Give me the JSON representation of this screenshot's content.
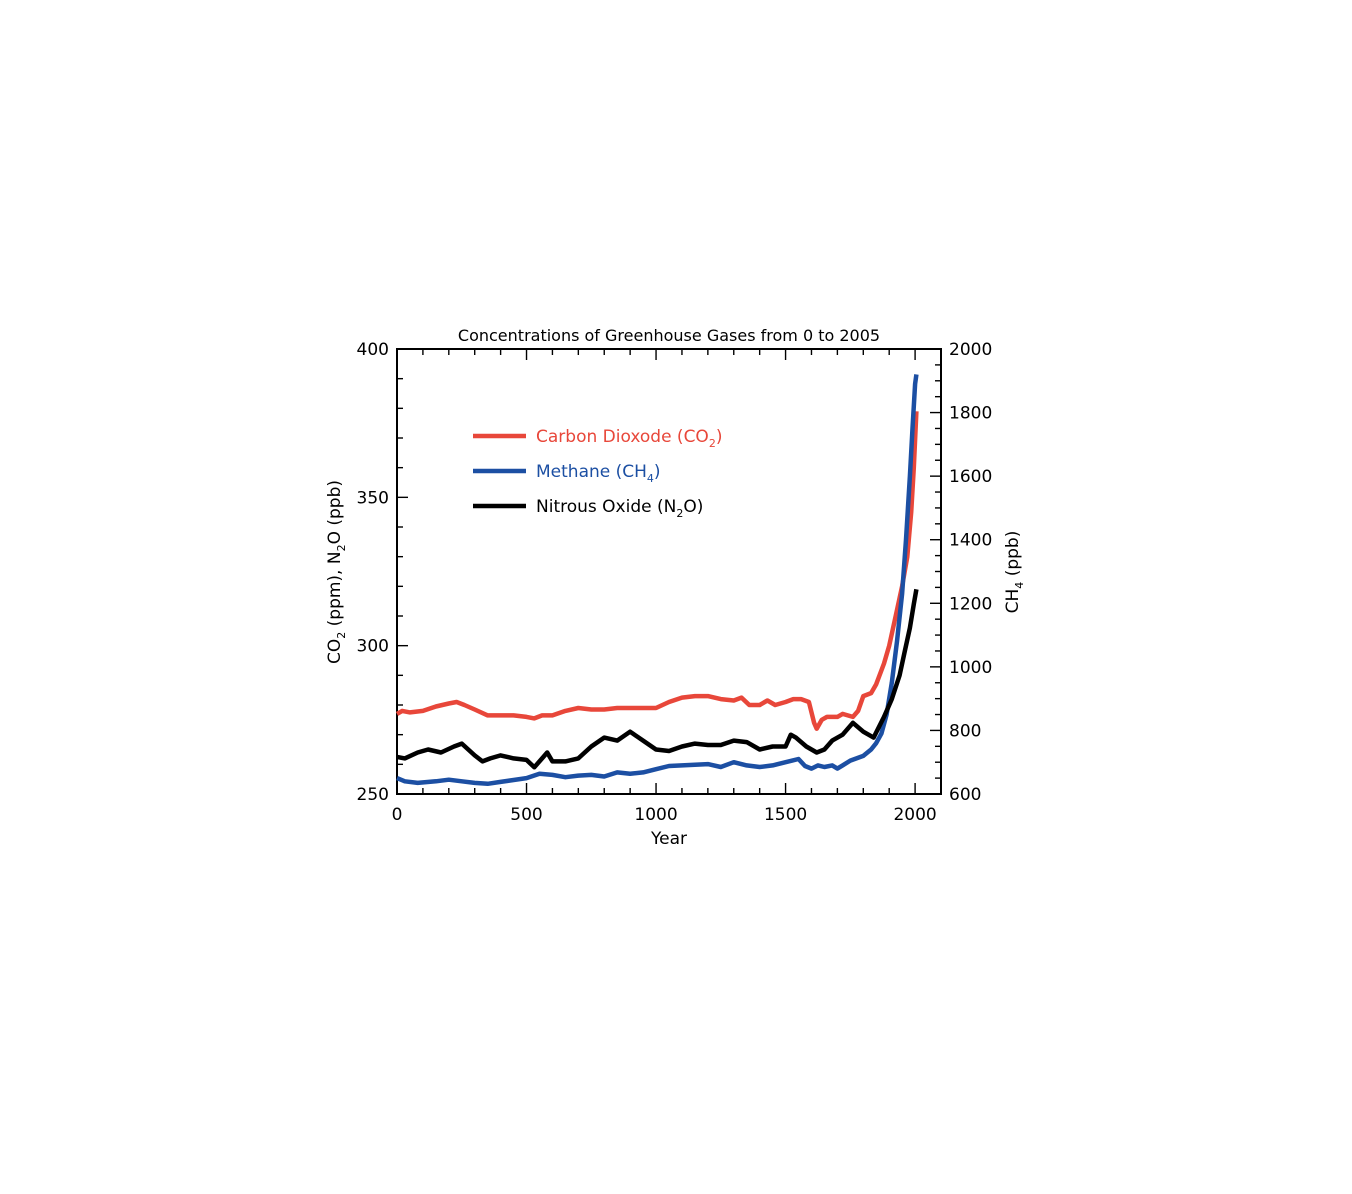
{
  "chart_data": {
    "type": "line",
    "title": "Concentrations of Greenhouse Gases from 0 to 2005",
    "xlabel": "Year",
    "ylabel_left_parts": [
      "CO",
      "2",
      " (ppm), N",
      "2",
      "O (ppb)"
    ],
    "ylabel_right_parts": [
      "CH",
      "4",
      " (ppb)"
    ],
    "xlim": [
      0,
      2100
    ],
    "ylim_left": [
      250,
      400
    ],
    "ylim_right": [
      600,
      2000
    ],
    "x_ticks": [
      0,
      500,
      1000,
      1500,
      2000
    ],
    "y_left_ticks": [
      250,
      300,
      350,
      400
    ],
    "y_right_ticks": [
      600,
      800,
      1000,
      1200,
      1400,
      1600,
      1800,
      2000
    ],
    "grid": false,
    "legend_position": "upper-left",
    "series": [
      {
        "key": "co2",
        "legend": [
          "Carbon Dioxode (CO",
          "2",
          ")"
        ],
        "axis": "left",
        "color": "#e8473a",
        "points": [
          [
            0,
            277
          ],
          [
            20,
            278
          ],
          [
            50,
            277.5
          ],
          [
            100,
            278
          ],
          [
            150,
            279.5
          ],
          [
            200,
            280.5
          ],
          [
            230,
            281
          ],
          [
            260,
            280
          ],
          [
            300,
            278.5
          ],
          [
            350,
            276.5
          ],
          [
            400,
            276.5
          ],
          [
            450,
            276.5
          ],
          [
            500,
            276
          ],
          [
            530,
            275.5
          ],
          [
            560,
            276.5
          ],
          [
            600,
            276.5
          ],
          [
            650,
            278
          ],
          [
            700,
            279
          ],
          [
            750,
            278.5
          ],
          [
            800,
            278.5
          ],
          [
            850,
            279
          ],
          [
            900,
            279
          ],
          [
            950,
            279
          ],
          [
            1000,
            279
          ],
          [
            1050,
            281
          ],
          [
            1100,
            282.5
          ],
          [
            1150,
            283
          ],
          [
            1200,
            283
          ],
          [
            1250,
            282
          ],
          [
            1300,
            281.5
          ],
          [
            1330,
            282.5
          ],
          [
            1360,
            280
          ],
          [
            1400,
            280
          ],
          [
            1430,
            281.5
          ],
          [
            1460,
            280
          ],
          [
            1500,
            281
          ],
          [
            1530,
            282
          ],
          [
            1560,
            282
          ],
          [
            1590,
            281
          ],
          [
            1610,
            274
          ],
          [
            1620,
            272
          ],
          [
            1640,
            275
          ],
          [
            1660,
            276
          ],
          [
            1700,
            276
          ],
          [
            1720,
            277
          ],
          [
            1760,
            276
          ],
          [
            1780,
            278
          ],
          [
            1800,
            283
          ],
          [
            1830,
            284
          ],
          [
            1850,
            287
          ],
          [
            1880,
            294
          ],
          [
            1900,
            300
          ],
          [
            1925,
            310
          ],
          [
            1950,
            320
          ],
          [
            1970,
            330
          ],
          [
            1985,
            345
          ],
          [
            1995,
            360
          ],
          [
            2005,
            379
          ]
        ]
      },
      {
        "key": "ch4",
        "legend": [
          "Methane (CH",
          "4",
          ")"
        ],
        "axis": "right",
        "color": "#1c4fa3",
        "points": [
          [
            0,
            650
          ],
          [
            30,
            640
          ],
          [
            80,
            635
          ],
          [
            150,
            640
          ],
          [
            200,
            645
          ],
          [
            250,
            640
          ],
          [
            300,
            635
          ],
          [
            350,
            632
          ],
          [
            400,
            638
          ],
          [
            450,
            644
          ],
          [
            500,
            650
          ],
          [
            550,
            664
          ],
          [
            600,
            660
          ],
          [
            650,
            653
          ],
          [
            700,
            658
          ],
          [
            750,
            660
          ],
          [
            800,
            655
          ],
          [
            850,
            668
          ],
          [
            900,
            664
          ],
          [
            950,
            668
          ],
          [
            1000,
            678
          ],
          [
            1050,
            688
          ],
          [
            1100,
            690
          ],
          [
            1150,
            692
          ],
          [
            1200,
            694
          ],
          [
            1250,
            685
          ],
          [
            1300,
            700
          ],
          [
            1350,
            690
          ],
          [
            1400,
            685
          ],
          [
            1450,
            690
          ],
          [
            1500,
            700
          ],
          [
            1550,
            710
          ],
          [
            1575,
            688
          ],
          [
            1600,
            680
          ],
          [
            1625,
            690
          ],
          [
            1650,
            685
          ],
          [
            1680,
            690
          ],
          [
            1700,
            680
          ],
          [
            1720,
            690
          ],
          [
            1750,
            705
          ],
          [
            1800,
            720
          ],
          [
            1830,
            740
          ],
          [
            1850,
            760
          ],
          [
            1870,
            790
          ],
          [
            1890,
            850
          ],
          [
            1910,
            950
          ],
          [
            1930,
            1080
          ],
          [
            1950,
            1230
          ],
          [
            1965,
            1400
          ],
          [
            1980,
            1600
          ],
          [
            1990,
            1750
          ],
          [
            2000,
            1890
          ],
          [
            2005,
            1920
          ]
        ]
      },
      {
        "key": "n2o",
        "legend": [
          "Nitrous Oxide (N",
          "2",
          "O)"
        ],
        "axis": "left",
        "color": "#000000",
        "points": [
          [
            0,
            262.5
          ],
          [
            30,
            262
          ],
          [
            80,
            264
          ],
          [
            120,
            265
          ],
          [
            170,
            264
          ],
          [
            220,
            266
          ],
          [
            250,
            267
          ],
          [
            300,
            263
          ],
          [
            330,
            261
          ],
          [
            360,
            262
          ],
          [
            400,
            263
          ],
          [
            450,
            262
          ],
          [
            500,
            261.5
          ],
          [
            530,
            259
          ],
          [
            560,
            262
          ],
          [
            580,
            264
          ],
          [
            600,
            261
          ],
          [
            650,
            261
          ],
          [
            700,
            262
          ],
          [
            750,
            266
          ],
          [
            800,
            269
          ],
          [
            850,
            268
          ],
          [
            900,
            271
          ],
          [
            950,
            268
          ],
          [
            1000,
            265
          ],
          [
            1050,
            264.5
          ],
          [
            1100,
            266
          ],
          [
            1150,
            267
          ],
          [
            1200,
            266.5
          ],
          [
            1250,
            266.5
          ],
          [
            1300,
            268
          ],
          [
            1350,
            267.5
          ],
          [
            1400,
            265
          ],
          [
            1450,
            266
          ],
          [
            1500,
            266
          ],
          [
            1520,
            270
          ],
          [
            1540,
            269
          ],
          [
            1580,
            266
          ],
          [
            1620,
            264
          ],
          [
            1650,
            265
          ],
          [
            1680,
            268
          ],
          [
            1720,
            270
          ],
          [
            1760,
            274
          ],
          [
            1800,
            271
          ],
          [
            1840,
            269
          ],
          [
            1880,
            276
          ],
          [
            1910,
            282
          ],
          [
            1940,
            290
          ],
          [
            1960,
            298
          ],
          [
            1980,
            306
          ],
          [
            1995,
            314
          ],
          [
            2005,
            319
          ]
        ]
      }
    ]
  }
}
